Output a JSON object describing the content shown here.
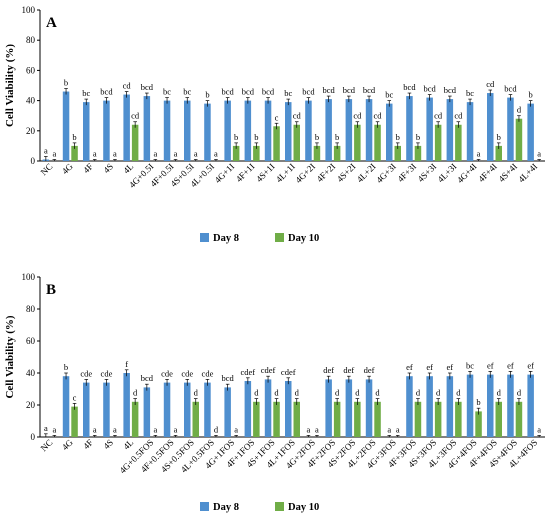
{
  "chart_data": [
    {
      "type": "bar",
      "panel_label": "A",
      "ylabel": "Cell Viability (%)",
      "ylim": [
        0,
        100
      ],
      "yticks": [
        0,
        20,
        40,
        60,
        80,
        100
      ],
      "categories": [
        "NC",
        "4G",
        "4F",
        "4S",
        "4L",
        "4G+0.5I",
        "4F+0.5I",
        "4S+0.5I",
        "4L+0.5I",
        "4G+1I",
        "4F+1I",
        "4S+1I",
        "4L+1I",
        "4G+2I",
        "4F+2I",
        "4S+2I",
        "4L+2I",
        "4G+3I",
        "4F+3I",
        "4S+3I",
        "4L+3I",
        "4G+4I",
        "4F+4I",
        "4S+4I",
        "4L+4I"
      ],
      "series": [
        {
          "name": "Day 8",
          "color": "#4f8fcf",
          "values": [
            1,
            46,
            39,
            40,
            44,
            43,
            40,
            40,
            38,
            40,
            40,
            40,
            39,
            40,
            41,
            41,
            41,
            38,
            43,
            42,
            41,
            39,
            45,
            42,
            38
          ],
          "errors": [
            2,
            2,
            2,
            2,
            2,
            2,
            2,
            2,
            2,
            2,
            2,
            2,
            2,
            2,
            2,
            2,
            2,
            2,
            2,
            2,
            2,
            2,
            2,
            2,
            2
          ],
          "labels": [
            "a",
            "b",
            "bc",
            "bcd",
            "cd",
            "bcd",
            "bc",
            "bc",
            "b",
            "bcd",
            "bcd",
            "bcd",
            "bc",
            "bcd",
            "bcd",
            "bcd",
            "bcd",
            "bc",
            "bcd",
            "bcd",
            "bcd",
            "bc",
            "cd",
            "bcd",
            "b"
          ]
        },
        {
          "name": "Day 10",
          "color": "#70ad47",
          "values": [
            0,
            10,
            0,
            0,
            24,
            0,
            0,
            0,
            0,
            10,
            10,
            23,
            24,
            10,
            10,
            24,
            24,
            10,
            10,
            24,
            24,
            0,
            10,
            28,
            0
          ],
          "errors": [
            1,
            2,
            1,
            1,
            2,
            1,
            1,
            1,
            1,
            2,
            2,
            2,
            2,
            2,
            2,
            2,
            2,
            2,
            2,
            2,
            2,
            1,
            2,
            2,
            1
          ],
          "labels": [
            "a",
            "b",
            "a",
            "a",
            "cd",
            "a",
            "a",
            "a",
            "a",
            "b",
            "b",
            "c",
            "cd",
            "b",
            "b",
            "cd",
            "cd",
            "b",
            "b",
            "cd",
            "cd",
            "a",
            "b",
            "d",
            "a"
          ]
        }
      ]
    },
    {
      "type": "bar",
      "panel_label": "B",
      "ylabel": "Cell Viability (%)",
      "ylim": [
        0,
        100
      ],
      "yticks": [
        0,
        20,
        40,
        60,
        80,
        100
      ],
      "categories": [
        "NC",
        "4G",
        "4F",
        "4S",
        "4L",
        "4G+0.5FOS",
        "4F+0.5FOS",
        "4S+0.5FOS",
        "4L+0.5FOS",
        "4G+1FOS",
        "4F+1FOS",
        "4S+1FOS",
        "4L+1FOS",
        "4G+2FOS",
        "4F+2FOS",
        "4S+2FOS",
        "4L+2FOS",
        "4G+3FOS",
        "4F+3FOS",
        "4S+3FOS",
        "4L+3FOS",
        "4G+4FOS",
        "4F+4FOS",
        "4S+4FOS",
        "4L+4FOS"
      ],
      "series": [
        {
          "name": "Day 8",
          "color": "#4f8fcf",
          "values": [
            0,
            38,
            34,
            34,
            40,
            31,
            34,
            34,
            34,
            31,
            35,
            36,
            35,
            0,
            36,
            36,
            36,
            0,
            38,
            38,
            38,
            39,
            39,
            39,
            39
          ],
          "errors": [
            2,
            2,
            2,
            2,
            2,
            2,
            2,
            2,
            2,
            2,
            2,
            2,
            2,
            1,
            2,
            2,
            2,
            1,
            2,
            2,
            2,
            2,
            2,
            2,
            2
          ],
          "labels": [
            "a",
            "b",
            "cde",
            "cde",
            "f",
            "bcd",
            "cde",
            "cde",
            "cde",
            "bcd",
            "cdef",
            "cdef",
            "cdef",
            "a",
            "def",
            "def",
            "def",
            "a",
            "ef",
            "ef",
            "ef",
            "bc",
            "ef",
            "ef",
            "ef"
          ]
        },
        {
          "name": "Day 10",
          "color": "#70ad47",
          "values": [
            0,
            19,
            0,
            0,
            22,
            0,
            0,
            22,
            0,
            0,
            22,
            22,
            22,
            0,
            22,
            22,
            22,
            0,
            22,
            22,
            22,
            16,
            22,
            22,
            0
          ],
          "errors": [
            1,
            2,
            1,
            1,
            2,
            1,
            1,
            2,
            1,
            1,
            2,
            2,
            2,
            1,
            2,
            2,
            2,
            1,
            2,
            2,
            2,
            2,
            2,
            2,
            1
          ],
          "labels": [
            "a",
            "c",
            "a",
            "a",
            "d",
            "a",
            "a",
            "d",
            "d",
            "a",
            "d",
            "d",
            "d",
            "a",
            "d",
            "d",
            "d",
            "a",
            "d",
            "d",
            "d",
            "b",
            "d",
            "d",
            "a"
          ]
        }
      ]
    }
  ],
  "legend": [
    {
      "name": "Day 8",
      "color": "#4f8fcf"
    },
    {
      "name": "Day 10",
      "color": "#70ad47"
    }
  ]
}
